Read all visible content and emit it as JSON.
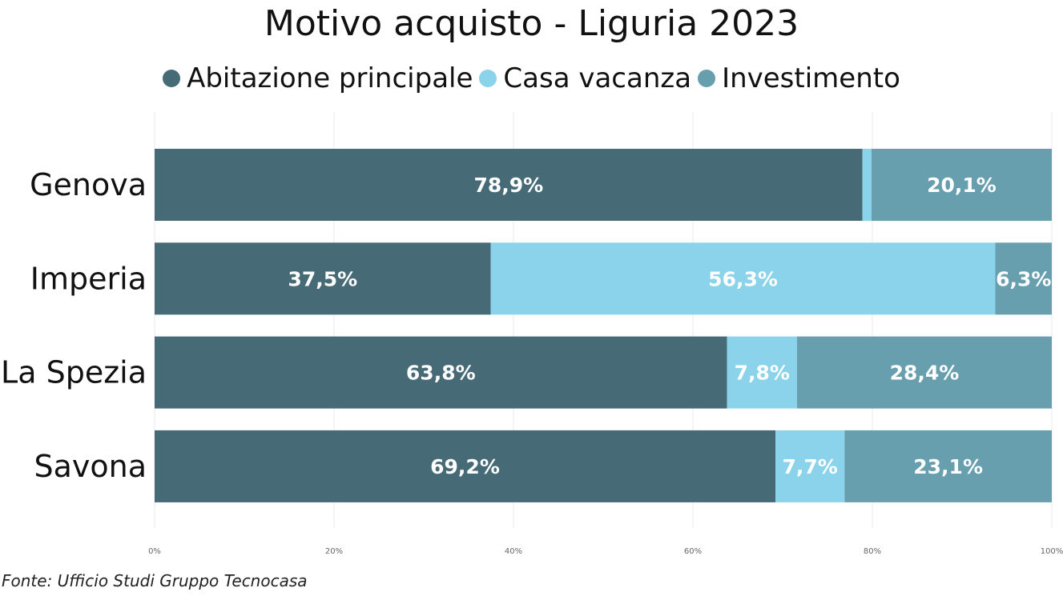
{
  "chart_data": {
    "type": "bar",
    "orientation": "horizontal",
    "stacked": "percent",
    "title": "Motivo acquisto - Liguria 2023",
    "categories": [
      "Genova",
      "Imperia",
      "La Spezia",
      "Savona"
    ],
    "series": [
      {
        "name": "Abitazione principale",
        "color": "#466a76",
        "values": [
          78.9,
          37.5,
          63.8,
          69.2
        ],
        "labels": [
          "78,9%",
          "37,5%",
          "63,8%",
          "69,2%"
        ]
      },
      {
        "name": "Casa vacanza",
        "color": "#8ad3ea",
        "values": [
          1.0,
          56.3,
          7.8,
          7.7
        ],
        "labels": [
          "",
          "56,3%",
          "7,8%",
          "7,7%"
        ]
      },
      {
        "name": "Investimento",
        "color": "#689faf",
        "values": [
          20.1,
          6.3,
          28.4,
          23.1
        ],
        "labels": [
          "20,1%",
          "6,3%",
          "28,4%",
          "23,1%"
        ]
      }
    ],
    "xlim": [
      0,
      100
    ],
    "x_ticks": [
      "0%",
      "20%",
      "40%",
      "60%",
      "80%",
      "100%"
    ],
    "grid": true,
    "legend_position": "top"
  },
  "source": "Fonte: Ufficio Studi Gruppo Tecnocasa"
}
